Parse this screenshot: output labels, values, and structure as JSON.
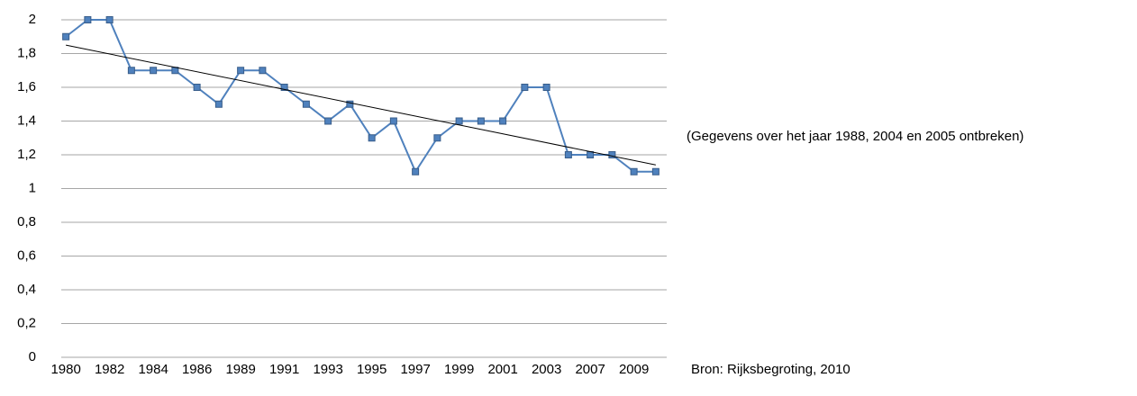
{
  "chart_data": {
    "type": "line",
    "categories": [
      "1980",
      null,
      "1982",
      null,
      "1984",
      null,
      "1986",
      null,
      "1989",
      null,
      "1991",
      null,
      "1993",
      null,
      "1995",
      null,
      "1997",
      null,
      "1999",
      null,
      "2001",
      null,
      "2003",
      null,
      "2007",
      null,
      "2009",
      null
    ],
    "series": [
      {
        "color": "#4f81bd",
        "values": [
          1.9,
          2,
          2,
          1.7,
          1.7,
          1.7,
          1.6,
          1.5,
          1.7,
          1.7,
          1.6,
          1.5,
          1.4,
          1.5,
          1.3,
          1.4,
          1.1,
          1.3,
          1.4,
          1.4,
          1.4,
          1.6,
          1.6,
          1.2,
          1.2,
          1.2,
          1.1,
          1.1
        ]
      }
    ],
    "trendline": {
      "color": "#000000",
      "values": [
        1.85,
        1.14
      ]
    },
    "ylim": [
      0,
      2
    ],
    "yticks": [
      0,
      {
        "value": 0.2,
        "label": "0,2"
      },
      {
        "value": 0.4,
        "label": "0,4"
      },
      {
        "value": 0.6,
        "label": "0,6"
      },
      {
        "value": 0.8,
        "label": "0,8"
      },
      1,
      {
        "value": 1.2,
        "label": "1,2"
      },
      {
        "value": 1.4,
        "label": "1,4"
      },
      {
        "value": 1.6,
        "label": "1,6"
      },
      {
        "value": 1.8,
        "label": "1,8"
      },
      2
    ],
    "grid": true,
    "annotations": [
      "(Gegevens over het jaar 1988, 2004 en 2005 ontbreken)",
      "Bron: Rijksbegroting, 2010"
    ]
  }
}
